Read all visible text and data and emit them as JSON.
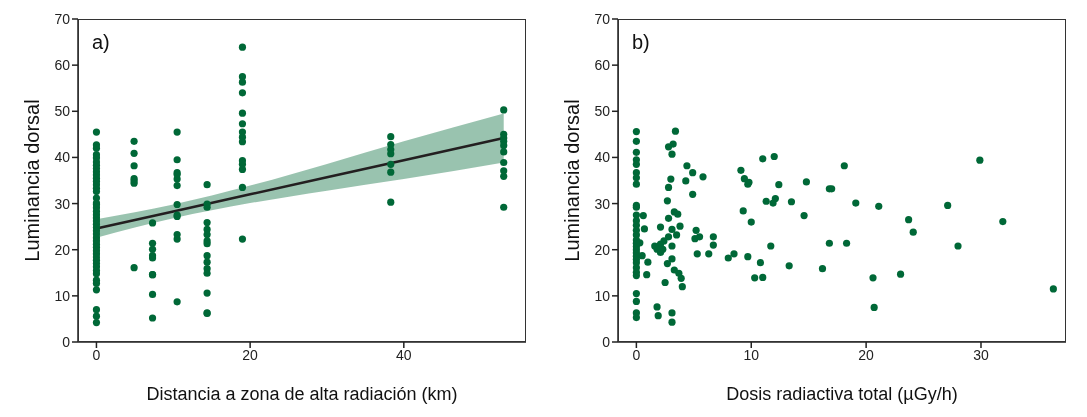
{
  "chart_data": [
    {
      "type": "scatter",
      "xlabel": "Distancia a zona de alta radiación (km)",
      "ylabel": "Luminancia dorsal",
      "annotations": [
        "a)"
      ],
      "xlim": [
        -2.4,
        55.9
      ],
      "xticks": [
        0,
        20,
        40
      ],
      "ylim": [
        0,
        70
      ],
      "yticks": [
        0,
        10,
        20,
        30,
        40,
        50,
        60,
        70
      ],
      "grid": false,
      "marker": "circle",
      "series": [
        {
          "color": "#006837",
          "x": [
            0,
            0,
            0,
            0,
            0,
            0,
            0,
            0,
            0,
            0,
            0,
            0,
            0,
            0,
            0,
            0,
            0,
            0,
            0,
            0,
            0,
            0,
            0,
            0,
            0,
            0,
            0,
            0,
            0,
            0,
            0,
            0,
            0,
            0,
            0,
            0,
            0,
            0,
            0,
            0,
            0,
            0,
            0,
            0,
            0,
            4.9,
            4.9,
            4.9,
            4.9,
            4.9,
            4.9,
            4.9,
            7.3,
            7.3,
            7.3,
            7.3,
            7.3,
            7.3,
            7.3,
            7.3,
            7.3,
            10.5,
            10.5,
            10.5,
            10.5,
            10.5,
            10.5,
            10.5,
            10.5,
            10.5,
            10.5,
            10.5,
            10.5,
            14.4,
            14.4,
            14.4,
            14.4,
            14.4,
            14.4,
            14.4,
            14.4,
            14.4,
            14.4,
            14.4,
            14.4,
            14.4,
            14.4,
            14.4,
            19,
            19,
            19,
            19,
            19,
            19,
            19,
            19,
            19,
            19,
            19,
            19,
            19,
            19,
            38.3,
            38.3,
            38.3,
            38.3,
            38.3,
            38.3,
            38.3,
            53,
            53,
            53,
            53,
            53,
            53,
            53,
            53,
            53,
            53
          ],
          "values": [
            45.5,
            42.7,
            42,
            40.6,
            39.9,
            39,
            38.3,
            37.6,
            36.9,
            36.2,
            35.5,
            34.8,
            34.1,
            33.3,
            32.6,
            31.2,
            30.1,
            29.8,
            29.1,
            28.3,
            27.6,
            26.9,
            26.2,
            25.5,
            24.8,
            24.1,
            23.4,
            22.6,
            21.9,
            21.2,
            20.5,
            19.8,
            19.1,
            18.4,
            17.7,
            17,
            16.3,
            15.5,
            14.8,
            13.4,
            12.7,
            11.3,
            7,
            5.6,
            4.2,
            43.5,
            40.9,
            38.2,
            35.4,
            34.9,
            34.4,
            16.1,
            25.8,
            21.4,
            20.1,
            18.7,
            18.2,
            14.6,
            14.6,
            10.3,
            5.2,
            45.5,
            39.5,
            36.7,
            36.3,
            35.3,
            33.9,
            29.8,
            27.5,
            27.2,
            23.3,
            22.3,
            8.7,
            34.1,
            29.9,
            29.2,
            25.9,
            24.4,
            23.3,
            21.9,
            21.3,
            18.7,
            17.3,
            15.9,
            14.9,
            10.6,
            6.3,
            6.2,
            63.9,
            57.5,
            56.3,
            54,
            49.6,
            47.3,
            45.5,
            44.4,
            43.4,
            38.5,
            37.4,
            33.5,
            22.3,
            39.3,
            44.5,
            42.8,
            41.7,
            40.8,
            38.5,
            36.8,
            30.3,
            50.3,
            45,
            44.2,
            43.5,
            42.6,
            41.2,
            38.9,
            37.1,
            35.9,
            29.2
          ]
        },
        {
          "type": "line",
          "marker": "none",
          "color": "#231f20",
          "x": [
            0,
            10,
            20,
            30,
            40,
            53
          ],
          "values": [
            24.6,
            28.3,
            32.0,
            35.7,
            39.4,
            44.2
          ],
          "lower": [
            22.6,
            26.8,
            30.1,
            32.8,
            35.3,
            38.9
          ],
          "upper": [
            26.6,
            29.8,
            33.9,
            38.6,
            43.5,
            49.5
          ]
        }
      ]
    },
    {
      "type": "scatter",
      "xlabel": "Dosis radiactiva total (µGy/h)",
      "ylabel": "Luminancia dorsal",
      "annotations": [
        "b)"
      ],
      "xlim": [
        -1.6,
        37.4
      ],
      "xticks": [
        0,
        10,
        20,
        30
      ],
      "ylim": [
        0,
        70
      ],
      "yticks": [
        0,
        10,
        20,
        30,
        40,
        50,
        60,
        70
      ],
      "grid": false,
      "marker": "circle",
      "series": [
        {
          "color": "#006837",
          "x": [
            0,
            0,
            0,
            0,
            0,
            0,
            0,
            0,
            0,
            0,
            0,
            0,
            0,
            0,
            0,
            0,
            0,
            0,
            0,
            0,
            0,
            0,
            0,
            0,
            0,
            0,
            0,
            0,
            0,
            0,
            3.4,
            2.8,
            3.2,
            3.1,
            4.4,
            4.9,
            4.3,
            5.8,
            3.0,
            2.8,
            4.9,
            2.7,
            0.6,
            3.3,
            3.6,
            2.8,
            2.1,
            3.8,
            0.7,
            3.1,
            5.2,
            3.5,
            2.8,
            6.7,
            5.1,
            5.5,
            0.3,
            2.4,
            2.1,
            1.6,
            6.7,
            3.1,
            1.8,
            2.1,
            2.3,
            11.7,
            0.5,
            1.0,
            5.3,
            6.3,
            8.0,
            8.5,
            9.7,
            10.8,
            13.3,
            16.2,
            2.7,
            3.1,
            3.3,
            3.7,
            3.9,
            4.0,
            0.9,
            2.5,
            10.3,
            11.0,
            1.8,
            1.9,
            3.1,
            3.1,
            9.1,
            9.4,
            9.8,
            9.7,
            11.0,
            12.0,
            12.4,
            9.3,
            10.0,
            11.3,
            12.1,
            11.9,
            13.5,
            14.6,
            14.8,
            16.8,
            16.8,
            18.1,
            17.0,
            19.1,
            21.1,
            18.3,
            20.6,
            20.7,
            23.0,
            23.7,
            24.1,
            27.1,
            29.9,
            28.0,
            31.9,
            36.3
          ],
          "values": [
            45.6,
            43.5,
            41.1,
            39.5,
            38.5,
            36.7,
            35.6,
            34.2,
            29.6,
            29.2,
            27.5,
            26.3,
            25.3,
            24.2,
            23.2,
            22.1,
            21.4,
            20.7,
            20.0,
            19.3,
            18.6,
            17.9,
            17.2,
            16.1,
            15.1,
            14.4,
            10.5,
            8.8,
            6.3,
            5.3,
            45.7,
            42.3,
            42.9,
            40.7,
            38.2,
            36.7,
            34.9,
            35.8,
            35.3,
            33.5,
            32.0,
            30.6,
            27.4,
            28.2,
            27.7,
            26.8,
            24.9,
            25.1,
            24.5,
            24.4,
            24.2,
            23.2,
            22.8,
            22.8,
            22.4,
            22.8,
            21.5,
            21.9,
            21.2,
            20.8,
            21.0,
            20.8,
            20.1,
            19.4,
            20.1,
            20.8,
            18.7,
            17.3,
            19.1,
            19.1,
            18.2,
            19.1,
            18.5,
            17.2,
            16.5,
            15.9,
            17.0,
            18.0,
            15.6,
            14.9,
            13.8,
            12.0,
            14.6,
            12.9,
            13.9,
            14.0,
            7.6,
            5.7,
            6.3,
            4.3,
            37.2,
            35.4,
            34.6,
            34.2,
            39.7,
            40.2,
            34.1,
            28.4,
            26.0,
            30.5,
            31.1,
            30.1,
            30.4,
            27.4,
            34.7,
            33.2,
            21.4,
            38.2,
            33.2,
            30.1,
            29.4,
            21.4,
            13.9,
            7.5,
            14.7,
            26.5,
            23.8,
            29.6,
            39.4,
            20.8,
            26.1,
            11.5
          ]
        }
      ]
    }
  ]
}
